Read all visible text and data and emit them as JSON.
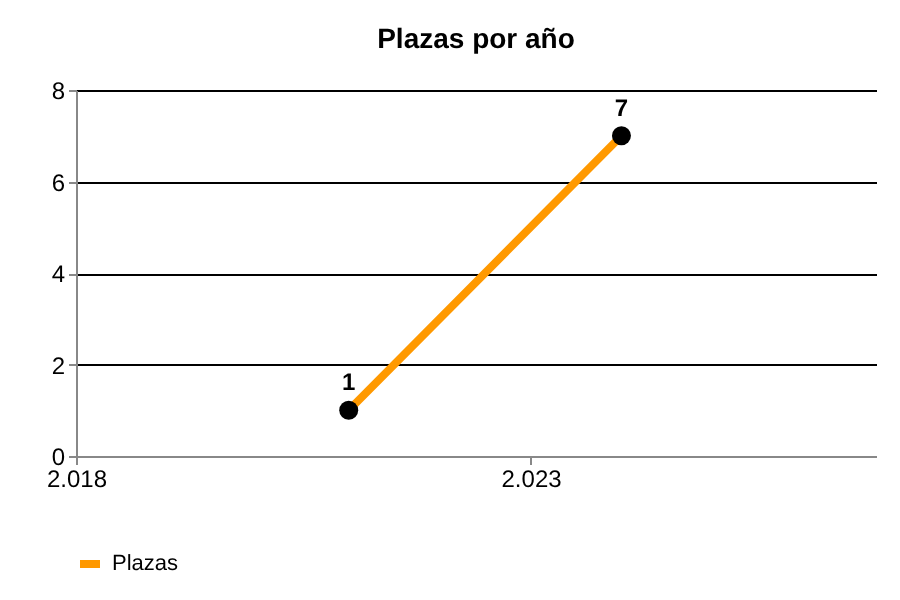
{
  "chart_data": {
    "type": "line",
    "title": "Plazas por año",
    "x": [
      2021,
      2024
    ],
    "series": [
      {
        "name": "Plazas",
        "color": "#ff9900",
        "values": [
          1,
          7
        ]
      }
    ],
    "xlim": [
      2018,
      2026.8
    ],
    "xticks": [
      {
        "value": 2018,
        "label": "2.018"
      },
      {
        "value": 2023,
        "label": "2.023"
      }
    ],
    "ylim": [
      0,
      8
    ],
    "yticks": [
      0,
      2,
      4,
      6,
      8
    ],
    "grid": "y",
    "legend": "bottom",
    "marker": "circle",
    "line_style": "solid",
    "data_labels": true
  }
}
